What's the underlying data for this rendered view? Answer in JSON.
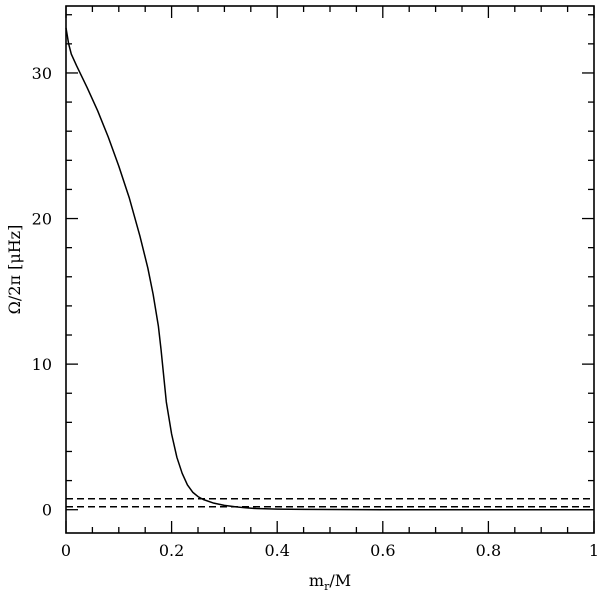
{
  "chart_data": {
    "type": "line",
    "xlabel_main": "m",
    "xlabel_sub": "r",
    "xlabel_tail": "/M",
    "ylabel": "Ω/2π [μHz]",
    "xlim": [
      0,
      1
    ],
    "ylim": [
      -1.6,
      34.6
    ],
    "x_ticks": [
      0,
      0.2,
      0.4,
      0.6,
      0.8,
      1
    ],
    "x_tick_labels": [
      "0",
      "0.2",
      "0.4",
      "0.6",
      "0.8",
      "1"
    ],
    "y_ticks": [
      0,
      10,
      20,
      30
    ],
    "y_tick_labels": [
      "0",
      "10",
      "20",
      "30"
    ],
    "grid": false,
    "series": [
      {
        "style": "solid",
        "x": [
          0.0,
          0.005,
          0.01,
          0.02,
          0.04,
          0.06,
          0.08,
          0.1,
          0.12,
          0.14,
          0.155,
          0.165,
          0.175,
          0.18,
          0.185,
          0.19,
          0.2,
          0.21,
          0.22,
          0.23,
          0.24,
          0.25,
          0.26,
          0.28,
          0.3,
          0.32,
          0.34,
          0.36,
          0.4,
          0.45,
          0.5,
          0.6,
          0.7,
          0.8,
          0.9,
          1.0
        ],
        "y": [
          33.1,
          32.0,
          31.3,
          30.5,
          29.0,
          27.4,
          25.6,
          23.6,
          21.4,
          18.8,
          16.6,
          14.8,
          12.6,
          11.0,
          9.2,
          7.4,
          5.2,
          3.6,
          2.5,
          1.7,
          1.2,
          0.9,
          0.7,
          0.45,
          0.3,
          0.2,
          0.13,
          0.08,
          0.04,
          0.02,
          0.01,
          0.0,
          0.0,
          0.0,
          0.0,
          0.0
        ]
      },
      {
        "style": "dashed",
        "x": [
          0,
          1
        ],
        "y": [
          0.75,
          0.75
        ]
      },
      {
        "style": "dashed",
        "x": [
          0,
          1
        ],
        "y": [
          0.2,
          0.2
        ]
      }
    ]
  }
}
